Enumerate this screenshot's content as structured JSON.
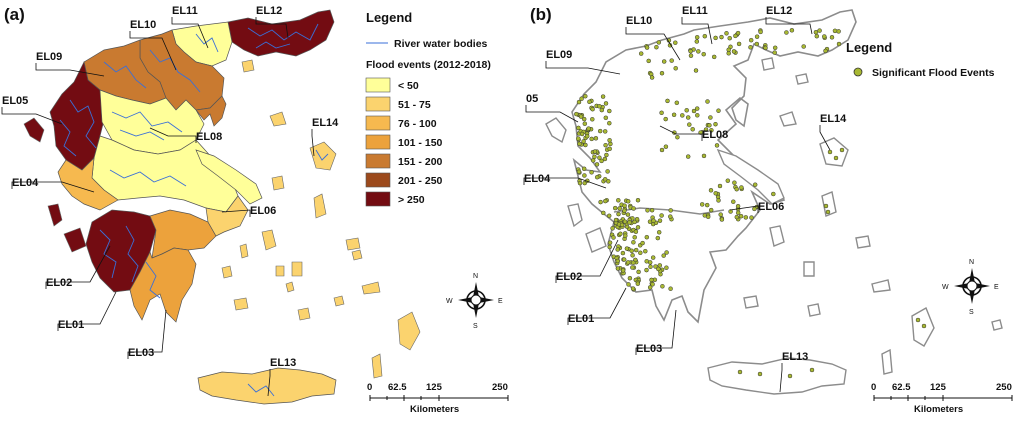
{
  "panels": {
    "a": {
      "letter": "(a)"
    },
    "b": {
      "letter": "(b)"
    }
  },
  "districts": {
    "EL01": "EL01",
    "EL02": "EL02",
    "EL03": "EL03",
    "EL04": "EL04",
    "EL05": "EL05",
    "EL06": "EL06",
    "EL08": "EL08",
    "EL09": "EL09",
    "EL10": "EL10",
    "EL11": "EL11",
    "EL12": "EL12",
    "EL13": "EL13",
    "EL14": "EL14"
  },
  "panel_b_el05_label": "05",
  "panel_b_el04_label": "EL04",
  "legend_a": {
    "title": "Legend",
    "river_label": "River water bodies",
    "flood_title": "Flood events (2012-2018)",
    "classes": [
      {
        "label": "< 50",
        "color": "#ffff99"
      },
      {
        "label": "51 - 75",
        "color": "#fbd36e"
      },
      {
        "label": "76 - 100",
        "color": "#f6b94f"
      },
      {
        "label": "101 - 150",
        "color": "#eca23c"
      },
      {
        "label": "151 - 200",
        "color": "#c97a30"
      },
      {
        "label": "201 - 250",
        "color": "#9c4a1c"
      },
      {
        "label": "> 250",
        "color": "#730c12"
      }
    ],
    "river_color": "#3a6fd8"
  },
  "legend_b": {
    "title": "Legend",
    "point_label": "Significant Flood Events",
    "point_color": "#a8b832"
  },
  "scale": {
    "ticks": [
      "0",
      "62.5",
      "125",
      "250"
    ],
    "unit": "Kilometers"
  },
  "compass": {
    "n": "N",
    "s": "S",
    "e": "E",
    "w": "W"
  }
}
